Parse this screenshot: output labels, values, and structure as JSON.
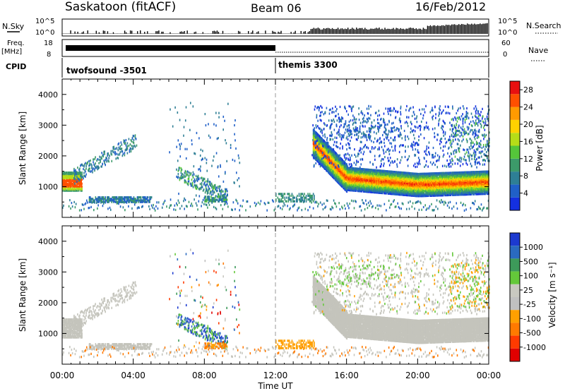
{
  "header": {
    "station": "Saskatoon (fitACF)",
    "beam": "Beam 06",
    "date": "16/Feb/2012"
  },
  "status_panels": {
    "nsky": {
      "label": "N.Sky",
      "ticks": [
        "10^5",
        "10^0"
      ]
    },
    "nsearch": {
      "label": "N.Search",
      "ticks": [
        "10^5",
        "10^0"
      ]
    },
    "freq": {
      "label_line1": "Freq.",
      "label_line2": "[MHz]",
      "ticks": [
        "18",
        "8"
      ]
    },
    "nave": {
      "label": "Nave",
      "ticks": [
        "60",
        "0"
      ]
    },
    "cpid": {
      "label": "CPID",
      "modes": [
        "twofsound -3501",
        "themis 3300"
      ],
      "switch_time": "12:00"
    }
  },
  "colors": {
    "power_scale": [
      "#1430e0",
      "#2060c8",
      "#2e7f95",
      "#3c9a6a",
      "#55c63a",
      "#b6dd18",
      "#ffd200",
      "#ff9a00",
      "#ff5000",
      "#e81010"
    ],
    "velocity_scale": [
      "#1c3ad0",
      "#2a6ac0",
      "#3d9a5a",
      "#64c83a",
      "#c8c8c0",
      "#c0c0c0",
      "#ffa000",
      "#ff7a00",
      "#ff3a00",
      "#e00000"
    ],
    "ground_scatter": "#c4c4bc"
  },
  "chart_data": [
    {
      "type": "heatmap",
      "name": "power",
      "ylabel": "Slant Range [km]",
      "xlabel": "Time UT",
      "yticks": [
        "1000",
        "2000",
        "3000",
        "4000"
      ],
      "ylim": [
        0,
        4500
      ],
      "xticks": [
        "00:00",
        "04:00",
        "08:00",
        "12:00",
        "16:00",
        "20:00",
        "00:00"
      ],
      "xlim": [
        0,
        24
      ],
      "colorbar": {
        "label": "Power [dB]",
        "ticks": [
          "4",
          "8",
          "12",
          "16",
          "20",
          "24",
          "28"
        ],
        "range": [
          0,
          30
        ]
      }
    },
    {
      "type": "heatmap",
      "name": "velocity",
      "ylabel": "Slant Range [km]",
      "xlabel": "Time UT",
      "yticks": [
        "1000",
        "2000",
        "3000",
        "4000"
      ],
      "ylim": [
        0,
        4500
      ],
      "xticks": [
        "00:00",
        "04:00",
        "08:00",
        "12:00",
        "16:00",
        "20:00",
        "00:00"
      ],
      "xlim": [
        0,
        24
      ],
      "colorbar": {
        "label": "Velocity [m s⁻¹]",
        "ticks": [
          "1000",
          "500",
          "100",
          "25",
          "-25",
          "-100",
          "-500",
          "-1000"
        ]
      }
    }
  ]
}
